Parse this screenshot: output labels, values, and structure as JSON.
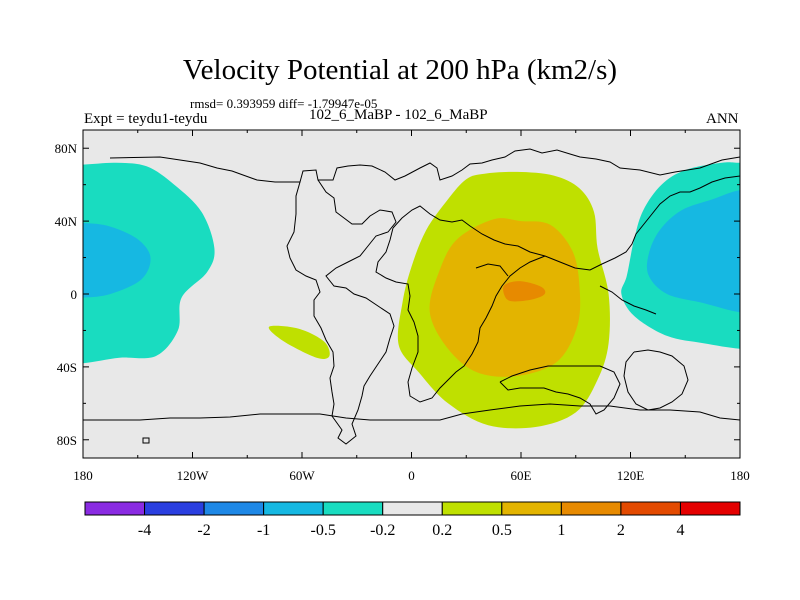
{
  "chart_data": {
    "type": "contour map",
    "title": "Velocity Potential at 200 hPa (km2/s)",
    "stats": "rmsd= 0.393959 diff= -1.79947e-05",
    "experiment": "Expt = teydu1-teydu",
    "cases": "102_6_MaBP - 102_6_MaBP",
    "season": "ANN",
    "xlim": [
      -180,
      180
    ],
    "ylim": [
      -90,
      90
    ],
    "x_ticks": [
      {
        "value": -180,
        "label": "180"
      },
      {
        "value": -120,
        "label": "120W"
      },
      {
        "value": -60,
        "label": "60W"
      },
      {
        "value": 0,
        "label": "0"
      },
      {
        "value": 60,
        "label": "60E"
      },
      {
        "value": 120,
        "label": "120E"
      },
      {
        "value": 180,
        "label": "180"
      }
    ],
    "y_ticks": [
      {
        "value": 80,
        "label": "80N"
      },
      {
        "value": 40,
        "label": "40N"
      },
      {
        "value": 0,
        "label": "0"
      },
      {
        "value": -40,
        "label": "40S"
      },
      {
        "value": -80,
        "label": "80S"
      }
    ],
    "colorbar": {
      "colors": [
        "#8a2be2",
        "#2a3fe0",
        "#1e88e6",
        "#16b8e2",
        "#19dcc0",
        "#e8e8e8",
        "#bfe000",
        "#e3b400",
        "#e78a00",
        "#e34a00",
        "#e40000"
      ],
      "levels": [
        "-4",
        "-2",
        "-1",
        "-0.5",
        "-0.2",
        "0.2",
        "0.5",
        "1",
        "2",
        "4"
      ]
    },
    "regions": [
      {
        "name": "west-pacific-negative",
        "level": "-0.2 to -0.5",
        "color": "#19dcc0",
        "lonlat": [
          [
            -180,
            71
          ],
          [
            -162,
            72
          ],
          [
            -145,
            70
          ],
          [
            -130,
            60
          ],
          [
            -115,
            45
          ],
          [
            -108,
            25
          ],
          [
            -112,
            12
          ],
          [
            -126,
            -2
          ],
          [
            -128,
            -20
          ],
          [
            -140,
            -34
          ],
          [
            -160,
            -35
          ],
          [
            -180,
            -38
          ]
        ]
      },
      {
        "name": "west-pacific-core",
        "level": "-0.5 to -1",
        "color": "#16b8e2",
        "lonlat": [
          [
            -180,
            39
          ],
          [
            -165,
            37
          ],
          [
            -150,
            30
          ],
          [
            -143,
            20
          ],
          [
            -148,
            8
          ],
          [
            -165,
            0
          ],
          [
            -180,
            -2
          ]
        ]
      },
      {
        "name": "east-pacific-negative",
        "level": "-0.2 to -0.5",
        "color": "#19dcc0",
        "lonlat": [
          [
            180,
            72
          ],
          [
            170,
            72
          ],
          [
            150,
            68
          ],
          [
            137,
            60
          ],
          [
            127,
            46
          ],
          [
            122,
            30
          ],
          [
            118,
            10
          ],
          [
            115,
            0
          ],
          [
            122,
            -12
          ],
          [
            140,
            -23
          ],
          [
            160,
            -27
          ],
          [
            180,
            -30
          ]
        ]
      },
      {
        "name": "east-pacific-core",
        "level": "-0.5 to -1",
        "color": "#16b8e2",
        "lonlat": [
          [
            180,
            57
          ],
          [
            165,
            52
          ],
          [
            148,
            46
          ],
          [
            136,
            35
          ],
          [
            130,
            22
          ],
          [
            130,
            10
          ],
          [
            140,
            0
          ],
          [
            160,
            -5
          ],
          [
            180,
            -10
          ]
        ]
      },
      {
        "name": "atlantic-positive",
        "level": "0.2 to 0.5",
        "color": "#bfe000",
        "lonlat": [
          [
            -78,
            -18
          ],
          [
            -62,
            -19
          ],
          [
            -48,
            -26
          ],
          [
            -45,
            -34
          ],
          [
            -52,
            -35
          ],
          [
            -70,
            -26
          ]
        ]
      },
      {
        "name": "africa-indian-positive",
        "level": "0.2 to 0.5",
        "color": "#bfe000",
        "lonlat": [
          [
            30,
            63
          ],
          [
            40,
            66
          ],
          [
            58,
            67
          ],
          [
            78,
            65
          ],
          [
            92,
            58
          ],
          [
            100,
            45
          ],
          [
            102,
            25
          ],
          [
            108,
            0
          ],
          [
            108,
            -27
          ],
          [
            102,
            -47
          ],
          [
            90,
            -65
          ],
          [
            68,
            -73
          ],
          [
            42,
            -72
          ],
          [
            20,
            -60
          ],
          [
            4,
            -43
          ],
          [
            -7,
            -28
          ],
          [
            -5,
            -5
          ],
          [
            0,
            15
          ],
          [
            8,
            35
          ],
          [
            20,
            52
          ]
        ]
      },
      {
        "name": "africa-indian-core",
        "level": "0.5 to 1",
        "color": "#e3b400",
        "lonlat": [
          [
            45,
            41
          ],
          [
            60,
            40
          ],
          [
            76,
            38
          ],
          [
            88,
            24
          ],
          [
            92,
            5
          ],
          [
            91,
            -17
          ],
          [
            80,
            -37
          ],
          [
            58,
            -45
          ],
          [
            36,
            -43
          ],
          [
            20,
            -30
          ],
          [
            10,
            -10
          ],
          [
            15,
            12
          ],
          [
            25,
            30
          ]
        ]
      },
      {
        "name": "indian-max",
        "level": "1 to 2",
        "color": "#e78a00",
        "lonlat": [
          [
            51,
            5
          ],
          [
            60,
            7
          ],
          [
            71,
            4
          ],
          [
            73,
            0
          ],
          [
            66,
            -3
          ],
          [
            55,
            -4
          ],
          [
            51,
            -1
          ]
        ]
      }
    ]
  }
}
